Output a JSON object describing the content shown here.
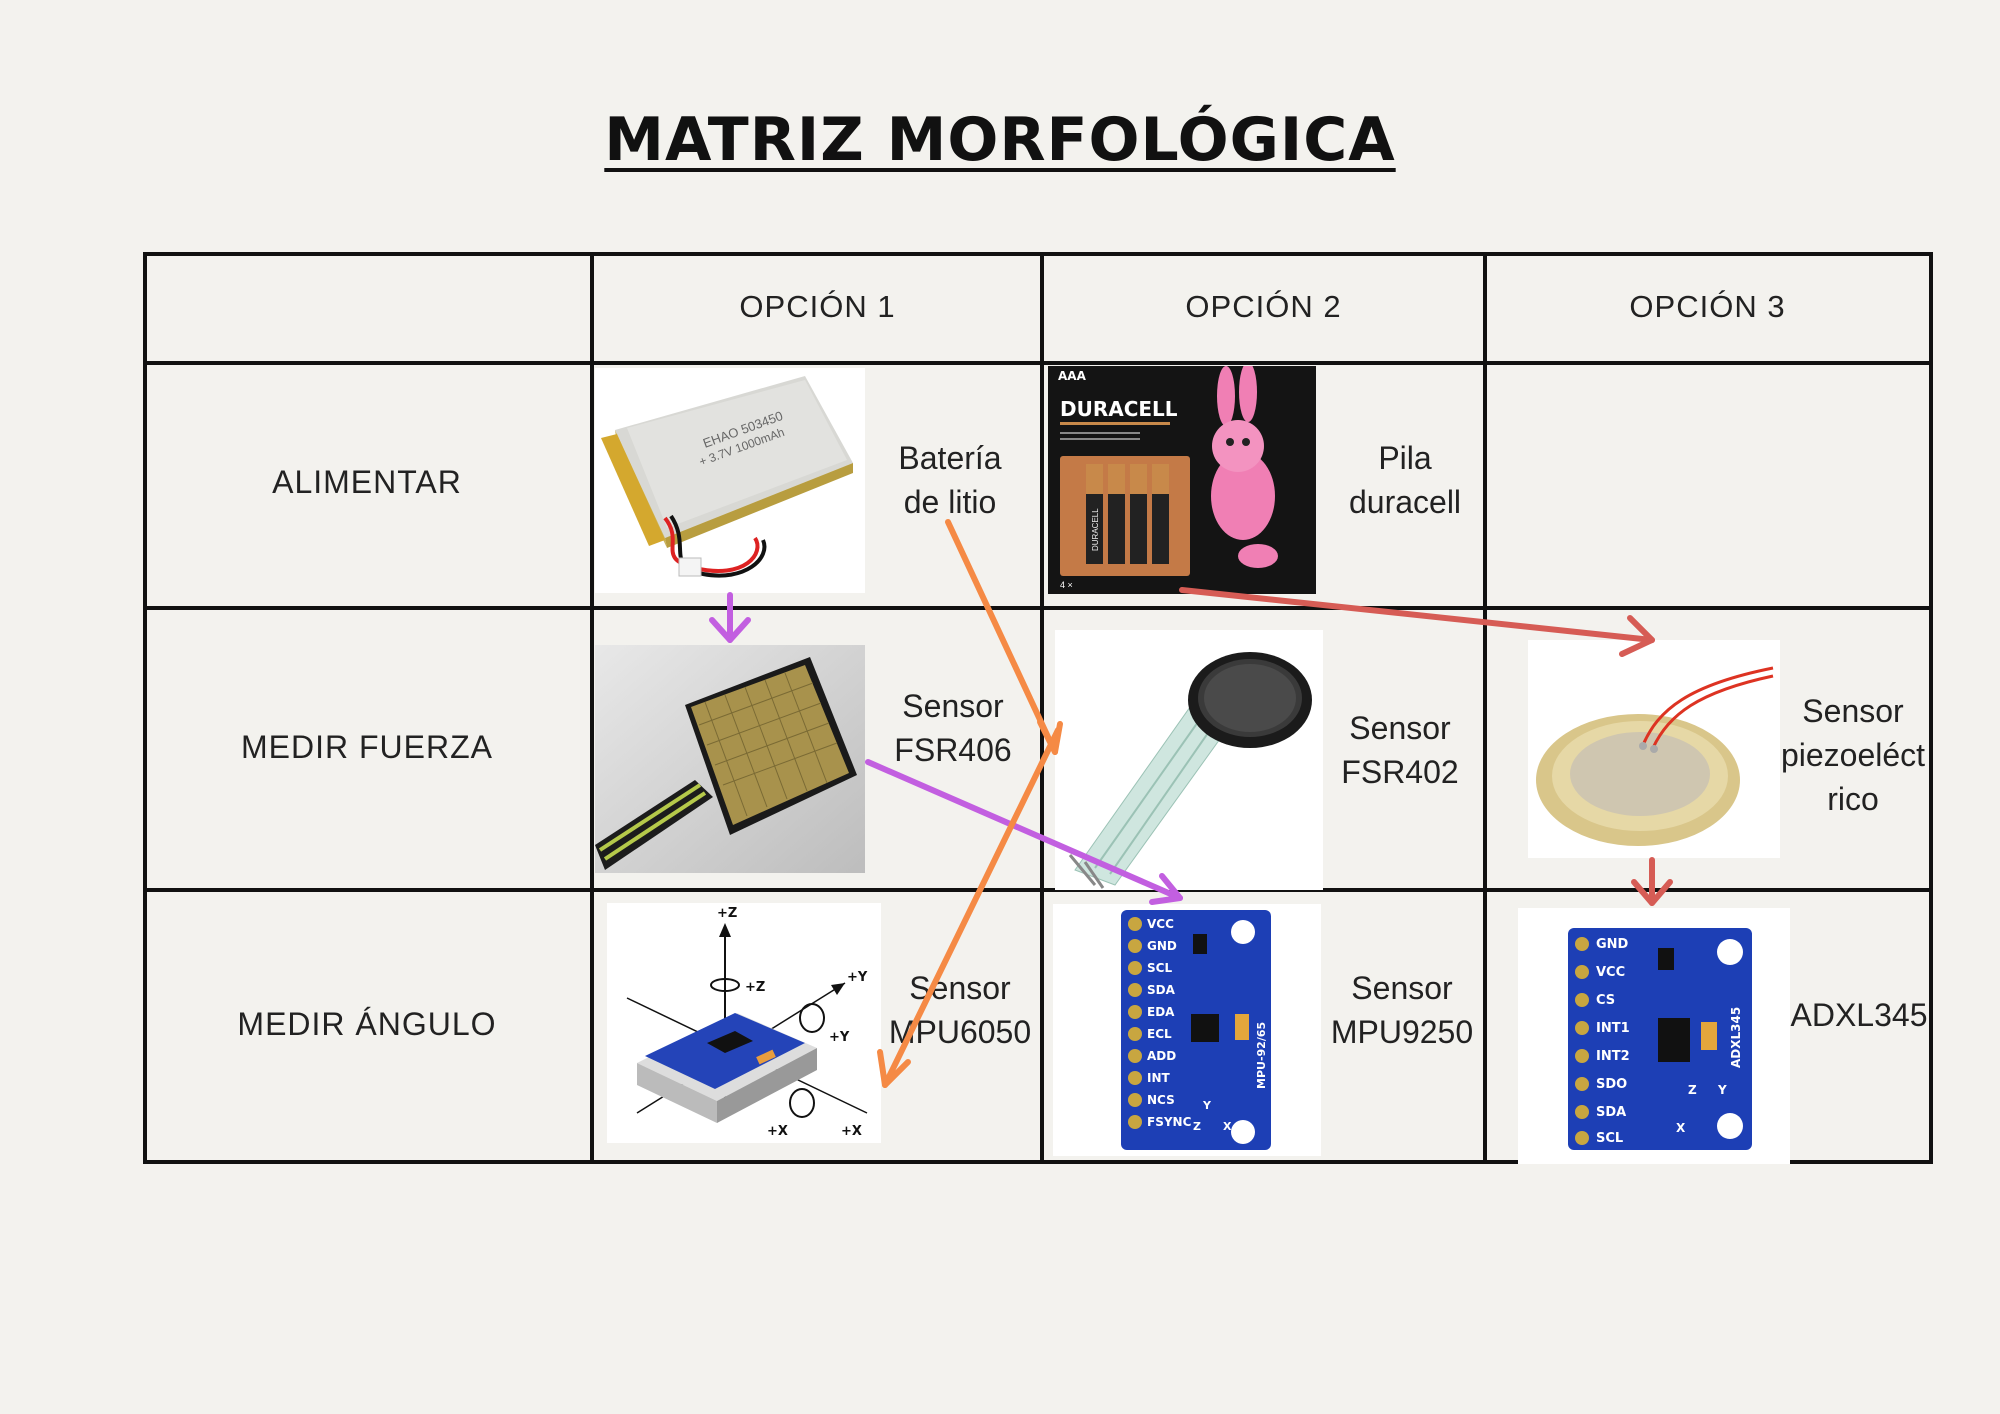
{
  "title": "MATRIZ MORFOLÓGICA",
  "columns": [
    "OPCIÓN 1",
    "OPCIÓN 2",
    "OPCIÓN 3"
  ],
  "rows": [
    "ALIMENTAR",
    "MEDIR FUERZA",
    "MEDIR ÁNGULO"
  ],
  "cells": {
    "r1c1": [
      "Batería",
      "de litio"
    ],
    "r1c2": [
      "Pila",
      "duracell"
    ],
    "r2c1": [
      "Sensor",
      "FSR406"
    ],
    "r2c2": [
      "Sensor",
      "FSR402"
    ],
    "r2c3": [
      "Sensor",
      "piezoeléct",
      "rico"
    ],
    "r3c1": [
      "Sensor",
      "MPU6050"
    ],
    "r3c2": [
      "Sensor",
      "MPU9250"
    ],
    "r3c3": [
      "ADXL345"
    ]
  },
  "photo_text": {
    "battery_print": [
      "EHAO 503450",
      "+ 3.7V 1000mAh"
    ],
    "duracell_size": "AAA",
    "duracell_brand": "DURACELL",
    "duracell_cell": "DURACELL",
    "duracell_count": "4 ×",
    "mpu6050_axes": [
      "+Z",
      "+Z",
      "+Y",
      "+Y",
      "+X",
      "+X"
    ],
    "mpu9250_pins": [
      "VCC",
      "GND",
      "SCL",
      "SDA",
      "EDA",
      "ECL",
      "ADD",
      "INT",
      "NCS",
      "FSYNC"
    ],
    "mpu9250_label": "MPU-92/65",
    "mpu9250_axes": [
      "Y",
      "Z",
      "X"
    ],
    "adxl345_pins": [
      "GND",
      "VCC",
      "CS",
      "INT1",
      "INT2",
      "SDO",
      "SDA",
      "SCL"
    ],
    "adxl345_label": "ADXL345",
    "adxl345_axes": [
      "Z",
      "Y",
      "X"
    ]
  },
  "colors": {
    "grid": "#111111",
    "arrow_purple": "#c25fe0",
    "arrow_orange": "#f58a45",
    "arrow_red": "#d65c55",
    "pcb_blue": "#1d3fb5"
  }
}
